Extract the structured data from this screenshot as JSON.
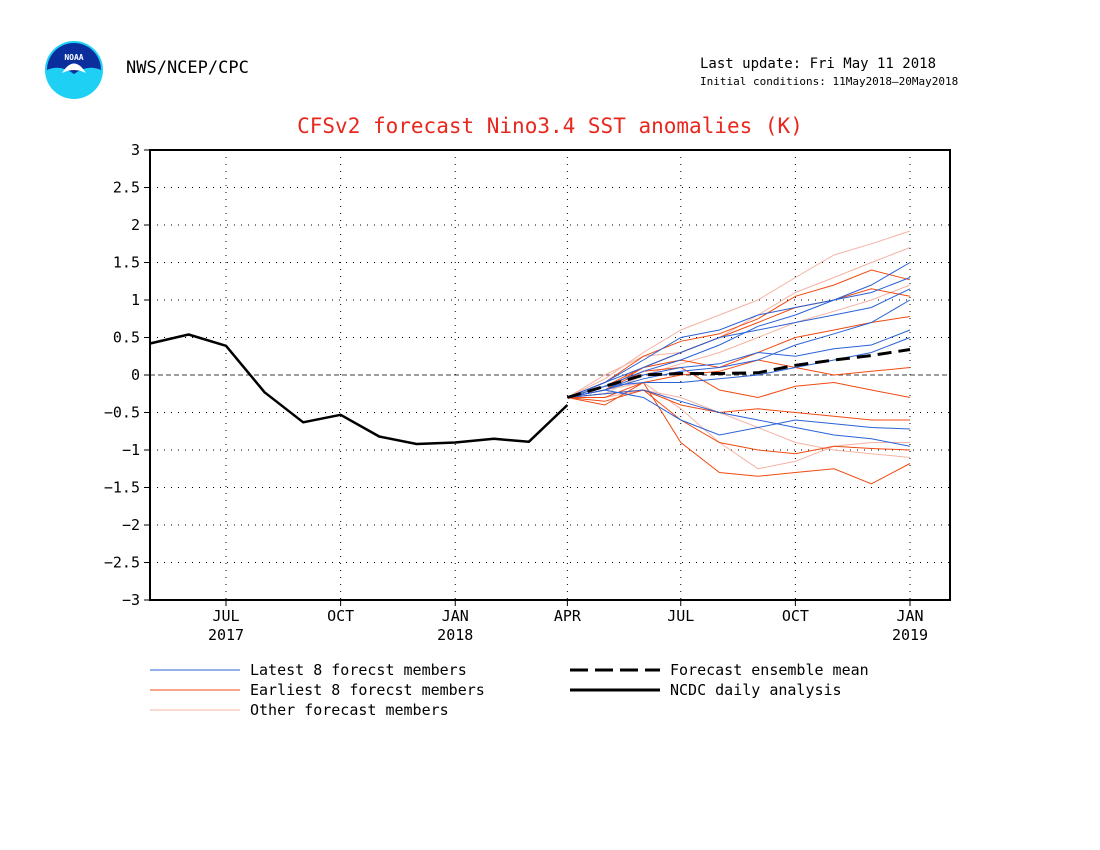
{
  "header": {
    "agency": "NWS/NCEP/CPC",
    "logo_text": "NOAA",
    "last_update": "Last update: Fri May 11 2018",
    "initial_conditions": "Initial conditions: 11May2018—20May2018"
  },
  "colors": {
    "title": "#e8271e",
    "latest_members": "#2a62d6",
    "earliest_members": "#f04a12",
    "other_members": "#f5b3a3",
    "analysis": "#000000",
    "ensemble_mean": "#000000"
  },
  "chart_data": {
    "type": "line",
    "title": "CFSv2 forecast Nino3.4 SST anomalies (K)",
    "xlabel": "",
    "ylabel": "",
    "ylim": [
      -3,
      3
    ],
    "xlim_months": [
      "2017-05",
      "2019-01"
    ],
    "y_ticks": [
      "3",
      "2.5",
      "2",
      "1.5",
      "1",
      "0.5",
      "0",
      "−0.5",
      "−1",
      "−1.5",
      "−2",
      "−2.5",
      "−3"
    ],
    "y_tick_values": [
      3,
      2.5,
      2,
      1.5,
      1,
      0.5,
      0,
      -0.5,
      -1,
      -1.5,
      -2,
      -2.5,
      -3
    ],
    "x_ticks": [
      {
        "label": "JUL",
        "year": "2017",
        "month": "2017-07"
      },
      {
        "label": "OCT",
        "year": "",
        "month": "2017-10"
      },
      {
        "label": "JAN",
        "year": "2018",
        "month": "2018-01"
      },
      {
        "label": "APR",
        "year": "",
        "month": "2018-04"
      },
      {
        "label": "JUL",
        "year": "",
        "month": "2018-07"
      },
      {
        "label": "OCT",
        "year": "",
        "month": "2018-10"
      },
      {
        "label": "JAN",
        "year": "2019",
        "month": "2019-01"
      }
    ],
    "grid": true,
    "analysis": {
      "name": "NCDC daily analysis",
      "x": [
        "2017-05-01",
        "2017-06-01",
        "2017-07-01",
        "2017-08-01",
        "2017-09-01",
        "2017-10-01",
        "2017-11-01",
        "2017-12-01",
        "2018-01-01",
        "2018-02-01",
        "2018-03-01",
        "2018-04-01"
      ],
      "y": [
        0.42,
        0.54,
        0.39,
        -0.23,
        -0.63,
        -0.53,
        -0.82,
        -0.92,
        -0.9,
        -0.85,
        -0.89,
        -0.4
      ]
    },
    "ensemble_mean": {
      "name": "Forecast ensemble mean",
      "x": [
        "2018-04-01",
        "2018-05-01",
        "2018-06-01",
        "2018-07-01",
        "2018-08-01",
        "2018-09-01",
        "2018-10-01",
        "2018-11-01",
        "2018-12-01",
        "2019-01-01"
      ],
      "y": [
        -0.3,
        -0.15,
        0.0,
        0.02,
        0.02,
        0.03,
        0.13,
        0.2,
        0.26,
        0.34
      ]
    },
    "member_months": [
      "2018-04-01",
      "2018-05-01",
      "2018-06-01",
      "2018-07-01",
      "2018-08-01",
      "2018-09-01",
      "2018-10-01",
      "2018-11-01",
      "2018-12-01",
      "2019-01-01"
    ],
    "members": {
      "latest": [
        [
          -0.3,
          -0.15,
          0.05,
          0.2,
          0.4,
          0.65,
          0.8,
          1.0,
          1.2,
          1.5
        ],
        [
          -0.3,
          -0.2,
          -0.05,
          0.05,
          0.1,
          0.2,
          0.4,
          0.55,
          0.7,
          1.0
        ],
        [
          -0.3,
          -0.1,
          0.1,
          0.3,
          0.5,
          0.6,
          0.7,
          0.8,
          0.9,
          1.15
        ],
        [
          -0.3,
          -0.25,
          -0.2,
          -0.35,
          -0.5,
          -0.6,
          -0.7,
          -0.8,
          -0.85,
          -0.95
        ],
        [
          -0.3,
          -0.2,
          -0.3,
          -0.6,
          -0.8,
          -0.7,
          -0.6,
          -0.65,
          -0.7,
          -0.72
        ],
        [
          -0.3,
          -0.15,
          -0.1,
          -0.1,
          -0.05,
          0.0,
          0.1,
          0.2,
          0.3,
          0.5
        ],
        [
          -0.3,
          -0.2,
          0.0,
          0.1,
          0.15,
          0.3,
          0.25,
          0.35,
          0.4,
          0.6
        ],
        [
          -0.3,
          -0.1,
          0.2,
          0.5,
          0.6,
          0.8,
          0.9,
          1.0,
          1.1,
          1.3
        ]
      ],
      "earliest": [
        [
          -0.3,
          -0.4,
          -0.1,
          -0.9,
          -1.3,
          -1.35,
          -1.3,
          -1.25,
          -1.45,
          -1.18
        ],
        [
          -0.3,
          -0.35,
          -0.2,
          -0.6,
          -0.9,
          -1.0,
          -1.05,
          -0.95,
          -0.98,
          -1.0
        ],
        [
          -0.3,
          -0.2,
          0.1,
          0.3,
          0.5,
          0.7,
          0.9,
          1.0,
          1.15,
          1.05
        ],
        [
          -0.3,
          -0.1,
          0.25,
          0.45,
          0.55,
          0.75,
          1.05,
          1.2,
          1.4,
          1.27
        ],
        [
          -0.3,
          -0.25,
          -0.2,
          -0.4,
          -0.5,
          -0.45,
          -0.5,
          -0.55,
          -0.6,
          -0.6
        ],
        [
          -0.3,
          -0.3,
          -0.1,
          0.0,
          0.05,
          0.2,
          0.1,
          0.0,
          0.05,
          0.1
        ],
        [
          -0.3,
          -0.15,
          0.1,
          0.2,
          0.1,
          0.3,
          0.5,
          0.6,
          0.7,
          0.78
        ],
        [
          -0.3,
          -0.2,
          0.05,
          0.1,
          -0.2,
          -0.3,
          -0.15,
          -0.1,
          -0.2,
          -0.3
        ]
      ],
      "other": [
        [
          -0.3,
          -0.05,
          0.3,
          0.6,
          0.8,
          1.0,
          1.3,
          1.6,
          1.75,
          1.92
        ],
        [
          -0.3,
          -0.2,
          -0.1,
          -0.45,
          -0.9,
          -1.25,
          -1.15,
          -0.95,
          -0.9,
          -0.9
        ],
        [
          -0.3,
          0.0,
          0.25,
          0.3,
          0.5,
          0.8,
          1.1,
          1.3,
          1.5,
          1.7
        ],
        [
          -0.3,
          -0.25,
          0.0,
          0.15,
          0.3,
          0.5,
          0.7,
          0.85,
          1.0,
          1.2
        ],
        [
          -0.3,
          -0.3,
          -0.2,
          -0.3,
          -0.5,
          -0.7,
          -0.9,
          -1.0,
          -1.05,
          -1.1
        ]
      ]
    },
    "legend": [
      {
        "label": "Latest 8 forecst members",
        "style": "latest"
      },
      {
        "label": "Earliest 8 forecst members",
        "style": "earliest"
      },
      {
        "label": "Other forecast members",
        "style": "other"
      },
      {
        "label": "Forecast ensemble mean",
        "style": "mean"
      },
      {
        "label": "NCDC daily analysis",
        "style": "analysis"
      }
    ]
  }
}
